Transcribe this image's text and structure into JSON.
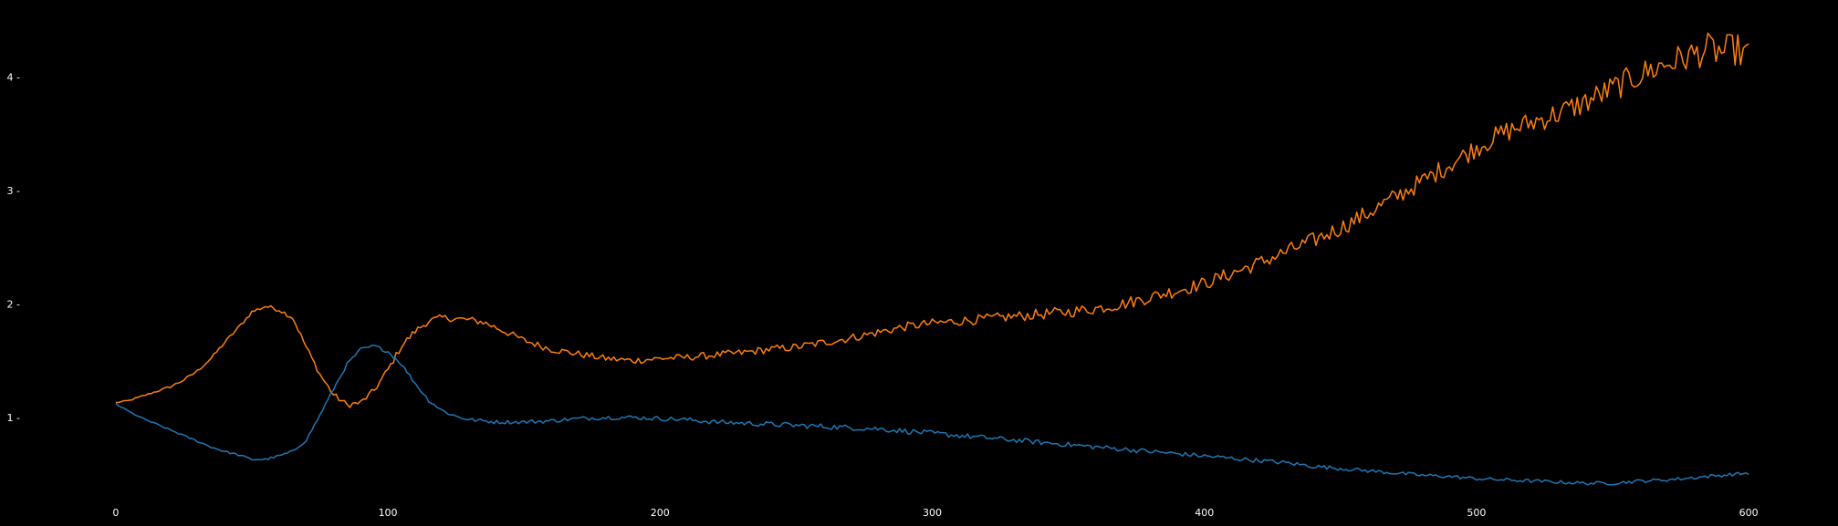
{
  "chart_data": {
    "type": "line",
    "title": "",
    "xlabel": "",
    "ylabel": "",
    "xlim": [
      -8,
      608
    ],
    "ylim": [
      0.3,
      4.6
    ],
    "xticks": [
      0,
      100,
      200,
      300,
      400,
      500,
      600
    ],
    "yticks": [
      1,
      2,
      3,
      4
    ],
    "xtick_labels": [
      "0",
      "100",
      "200",
      "300",
      "400",
      "500",
      "600"
    ],
    "ytick_labels": [
      "1 -",
      "2 -",
      "3 -",
      "4 -"
    ],
    "grid": false,
    "background": "#000000",
    "series": [
      {
        "color": "#ff7f0e",
        "points": [
          [
            0,
            1.13
          ],
          [
            5,
            1.15
          ],
          [
            10,
            1.19
          ],
          [
            15,
            1.23
          ],
          [
            20,
            1.27
          ],
          [
            25,
            1.33
          ],
          [
            30,
            1.41
          ],
          [
            35,
            1.52
          ],
          [
            40,
            1.66
          ],
          [
            45,
            1.79
          ],
          [
            50,
            1.93
          ],
          [
            55,
            1.98
          ],
          [
            60,
            1.95
          ],
          [
            65,
            1.88
          ],
          [
            70,
            1.62
          ],
          [
            75,
            1.38
          ],
          [
            80,
            1.2
          ],
          [
            85,
            1.11
          ],
          [
            90,
            1.13
          ],
          [
            95,
            1.24
          ],
          [
            100,
            1.42
          ],
          [
            105,
            1.63
          ],
          [
            110,
            1.76
          ],
          [
            115,
            1.85
          ],
          [
            120,
            1.88
          ],
          [
            125,
            1.87
          ],
          [
            130,
            1.86
          ],
          [
            135,
            1.84
          ],
          [
            140,
            1.79
          ],
          [
            150,
            1.68
          ],
          [
            160,
            1.6
          ],
          [
            170,
            1.56
          ],
          [
            180,
            1.52
          ],
          [
            190,
            1.5
          ],
          [
            200,
            1.52
          ],
          [
            210,
            1.53
          ],
          [
            220,
            1.55
          ],
          [
            230,
            1.57
          ],
          [
            240,
            1.6
          ],
          [
            250,
            1.62
          ],
          [
            260,
            1.66
          ],
          [
            270,
            1.7
          ],
          [
            280,
            1.75
          ],
          [
            290,
            1.8
          ],
          [
            300,
            1.83
          ],
          [
            310,
            1.85
          ],
          [
            320,
            1.87
          ],
          [
            330,
            1.89
          ],
          [
            340,
            1.91
          ],
          [
            350,
            1.93
          ],
          [
            360,
            1.96
          ],
          [
            370,
            2.0
          ],
          [
            380,
            2.06
          ],
          [
            390,
            2.12
          ],
          [
            400,
            2.18
          ],
          [
            410,
            2.27
          ],
          [
            420,
            2.36
          ],
          [
            430,
            2.46
          ],
          [
            440,
            2.56
          ],
          [
            450,
            2.67
          ],
          [
            460,
            2.8
          ],
          [
            470,
            2.94
          ],
          [
            480,
            3.08
          ],
          [
            490,
            3.23
          ],
          [
            500,
            3.38
          ],
          [
            510,
            3.51
          ],
          [
            520,
            3.6
          ],
          [
            530,
            3.68
          ],
          [
            540,
            3.78
          ],
          [
            550,
            3.9
          ],
          [
            560,
            4.02
          ],
          [
            570,
            4.12
          ],
          [
            580,
            4.2
          ],
          [
            585,
            4.25
          ],
          [
            590,
            4.22
          ],
          [
            595,
            4.25
          ],
          [
            600,
            4.18
          ]
        ],
        "noise": [
          [
            0,
            0.005
          ],
          [
            100,
            0.03
          ],
          [
            200,
            0.03
          ],
          [
            300,
            0.04
          ],
          [
            400,
            0.06
          ],
          [
            500,
            0.09
          ],
          [
            600,
            0.15
          ]
        ]
      },
      {
        "color": "#1f77b4",
        "points": [
          [
            0,
            1.12
          ],
          [
            5,
            1.05
          ],
          [
            10,
            0.99
          ],
          [
            15,
            0.94
          ],
          [
            20,
            0.89
          ],
          [
            25,
            0.84
          ],
          [
            30,
            0.79
          ],
          [
            35,
            0.74
          ],
          [
            40,
            0.7
          ],
          [
            45,
            0.67
          ],
          [
            50,
            0.63
          ],
          [
            55,
            0.63
          ],
          [
            60,
            0.66
          ],
          [
            65,
            0.7
          ],
          [
            70,
            0.8
          ],
          [
            75,
            1.02
          ],
          [
            80,
            1.25
          ],
          [
            85,
            1.47
          ],
          [
            90,
            1.6
          ],
          [
            95,
            1.63
          ],
          [
            100,
            1.58
          ],
          [
            105,
            1.47
          ],
          [
            110,
            1.3
          ],
          [
            115,
            1.15
          ],
          [
            120,
            1.06
          ],
          [
            125,
            1.01
          ],
          [
            130,
            0.98
          ],
          [
            140,
            0.96
          ],
          [
            150,
            0.96
          ],
          [
            160,
            0.97
          ],
          [
            170,
            0.99
          ],
          [
            180,
            1.0
          ],
          [
            190,
            1.0
          ],
          [
            200,
            0.99
          ],
          [
            210,
            0.98
          ],
          [
            220,
            0.96
          ],
          [
            230,
            0.95
          ],
          [
            240,
            0.94
          ],
          [
            250,
            0.93
          ],
          [
            260,
            0.92
          ],
          [
            270,
            0.91
          ],
          [
            280,
            0.9
          ],
          [
            290,
            0.88
          ],
          [
            300,
            0.86
          ],
          [
            310,
            0.84
          ],
          [
            320,
            0.82
          ],
          [
            330,
            0.8
          ],
          [
            340,
            0.78
          ],
          [
            350,
            0.76
          ],
          [
            360,
            0.74
          ],
          [
            370,
            0.72
          ],
          [
            380,
            0.7
          ],
          [
            390,
            0.68
          ],
          [
            400,
            0.66
          ],
          [
            410,
            0.64
          ],
          [
            420,
            0.62
          ],
          [
            430,
            0.6
          ],
          [
            440,
            0.57
          ],
          [
            450,
            0.55
          ],
          [
            460,
            0.53
          ],
          [
            470,
            0.51
          ],
          [
            480,
            0.49
          ],
          [
            490,
            0.48
          ],
          [
            500,
            0.46
          ],
          [
            510,
            0.45
          ],
          [
            520,
            0.44
          ],
          [
            530,
            0.43
          ],
          [
            540,
            0.42
          ],
          [
            550,
            0.42
          ],
          [
            560,
            0.44
          ],
          [
            570,
            0.45
          ],
          [
            580,
            0.47
          ],
          [
            590,
            0.49
          ],
          [
            600,
            0.51
          ]
        ],
        "noise": [
          [
            0,
            0.005
          ],
          [
            100,
            0.015
          ],
          [
            200,
            0.02
          ],
          [
            260,
            0.025
          ],
          [
            400,
            0.02
          ],
          [
            500,
            0.015
          ],
          [
            600,
            0.015
          ]
        ]
      }
    ]
  }
}
